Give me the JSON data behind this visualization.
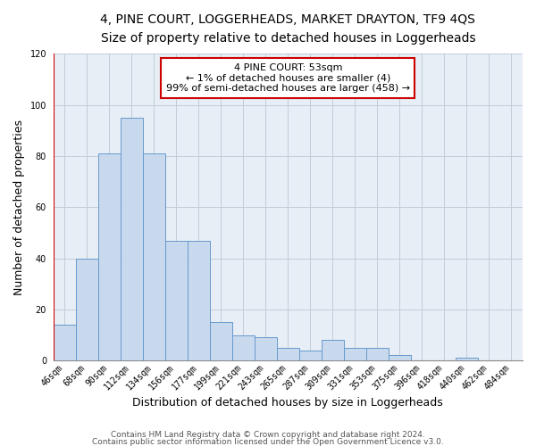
{
  "title": "4, PINE COURT, LOGGERHEADS, MARKET DRAYTON, TF9 4QS",
  "subtitle": "Size of property relative to detached houses in Loggerheads",
  "xlabel": "Distribution of detached houses by size in Loggerheads",
  "ylabel": "Number of detached properties",
  "bar_labels": [
    "46sqm",
    "68sqm",
    "90sqm",
    "112sqm",
    "134sqm",
    "156sqm",
    "177sqm",
    "199sqm",
    "221sqm",
    "243sqm",
    "265sqm",
    "287sqm",
    "309sqm",
    "331sqm",
    "353sqm",
    "375sqm",
    "396sqm",
    "418sqm",
    "440sqm",
    "462sqm",
    "484sqm"
  ],
  "bar_values": [
    14,
    40,
    81,
    95,
    81,
    47,
    47,
    15,
    10,
    9,
    5,
    4,
    8,
    5,
    5,
    2,
    0,
    0,
    1,
    0,
    0
  ],
  "bar_color": "#c9d9ed",
  "bar_edge_color": "#6699cc",
  "highlight_color": "#cc0000",
  "annotation_text": "4 PINE COURT: 53sqm\n← 1% of detached houses are smaller (4)\n99% of semi-detached houses are larger (458) →",
  "annotation_box_color": "#ffffff",
  "annotation_box_edge_color": "#cc0000",
  "ylim": [
    0,
    120
  ],
  "yticks": [
    0,
    20,
    40,
    60,
    80,
    100,
    120
  ],
  "footer1": "Contains HM Land Registry data © Crown copyright and database right 2024.",
  "footer2": "Contains public sector information licensed under the Open Government Licence v3.0.",
  "bg_color": "#ffffff",
  "plot_bg_color": "#e8eef5",
  "grid_color": "#c0ccd8",
  "title_fontsize": 10,
  "subtitle_fontsize": 9,
  "xlabel_fontsize": 9,
  "ylabel_fontsize": 9,
  "tick_fontsize": 7,
  "annotation_fontsize": 8,
  "footer_fontsize": 6.5
}
